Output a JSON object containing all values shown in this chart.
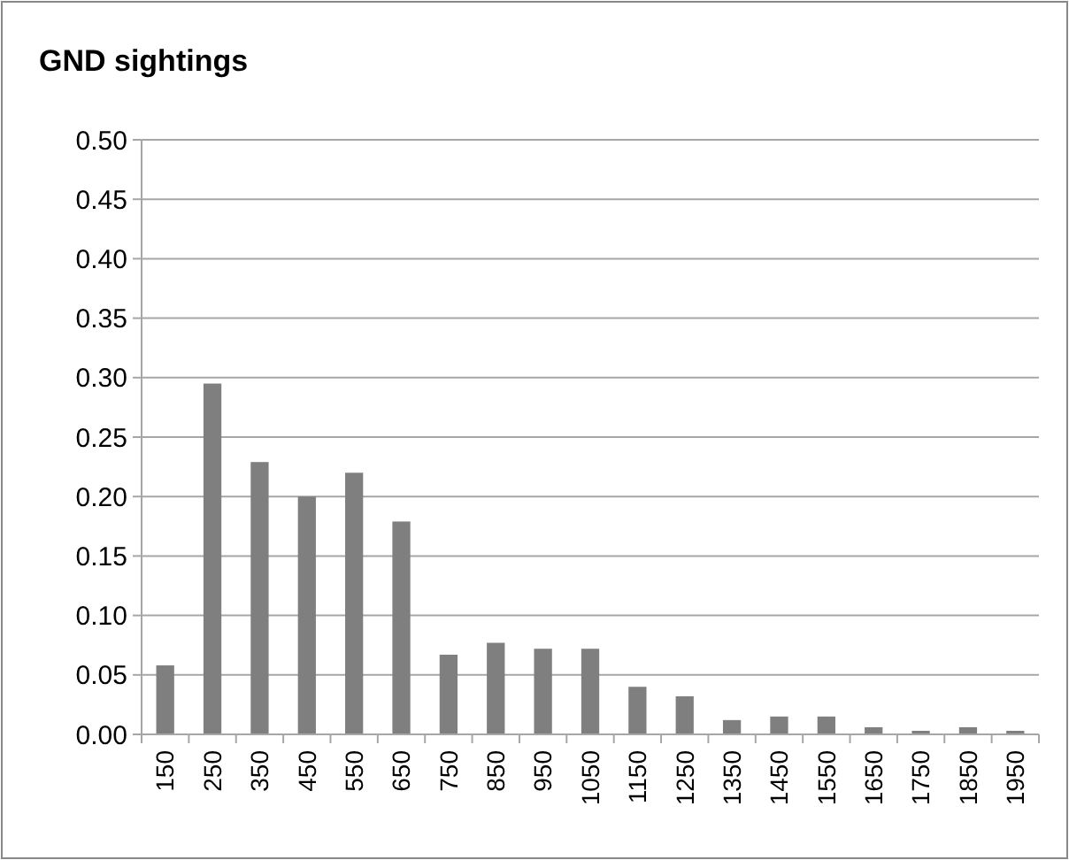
{
  "chart_data": {
    "type": "bar",
    "title": "GND sightings",
    "categories": [
      "150",
      "250",
      "350",
      "450",
      "550",
      "650",
      "750",
      "850",
      "950",
      "1050",
      "1150",
      "1250",
      "1350",
      "1450",
      "1550",
      "1650",
      "1750",
      "1850",
      "1950"
    ],
    "values": [
      0.058,
      0.295,
      0.229,
      0.2,
      0.22,
      0.179,
      0.067,
      0.077,
      0.072,
      0.072,
      0.04,
      0.032,
      0.012,
      0.015,
      0.015,
      0.006,
      0.003,
      0.006,
      0.003
    ],
    "color": "#7f7f7f",
    "ylim": [
      0,
      0.5
    ],
    "yticks": [
      {
        "value": 0,
        "label": "0.00"
      },
      {
        "value": 0.05,
        "label": "0.05"
      },
      {
        "value": 0.1,
        "label": "0.10"
      },
      {
        "value": 0.15,
        "label": "0.15"
      },
      {
        "value": 0.2,
        "label": "0.20"
      },
      {
        "value": 0.25,
        "label": "0.25"
      },
      {
        "value": 0.3,
        "label": "0.30"
      },
      {
        "value": 0.35,
        "label": "0.35"
      },
      {
        "value": 0.4,
        "label": "0.40"
      },
      {
        "value": 0.45,
        "label": "0.45"
      },
      {
        "value": 0.5,
        "label": "0.50"
      }
    ],
    "grid": "y"
  }
}
